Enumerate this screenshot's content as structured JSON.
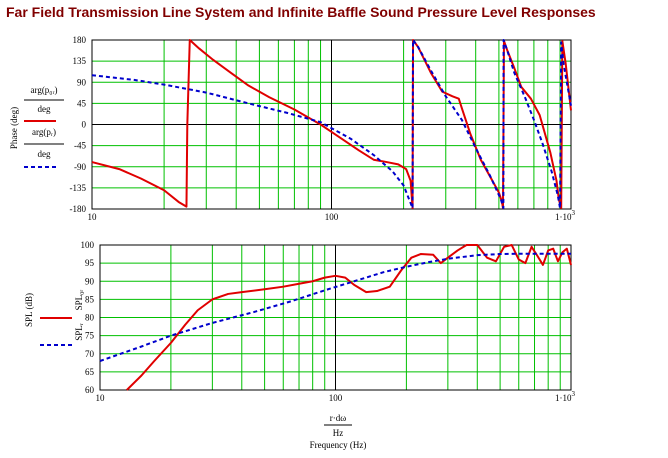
{
  "title": "Far Field Transmission Line System and Infinite Baffle Sound Pressure Level Responses",
  "colors": {
    "series1": "#e00000",
    "series2": "#0000cc",
    "grid_minor": "#00c000",
    "grid_major": "#000000",
    "title": "#800000"
  },
  "chart_data": [
    {
      "type": "line",
      "x_scale": "log",
      "xlim": [
        10,
        1000
      ],
      "ylim": [
        -180,
        180
      ],
      "grid": true,
      "x_ticks": [
        "10",
        "100",
        "1·10³"
      ],
      "y_ticks": [
        "180",
        "135",
        "90",
        "45",
        "0",
        "-45",
        "-90",
        "-135",
        "-180"
      ],
      "ylabel": "Phase (deg)",
      "xlabel": "",
      "legend_position": "left",
      "legend": [
        {
          "num": "arg(p₀ᵣ)",
          "den": "deg"
        },
        {
          "num": "arg(pᵣ)",
          "den": "deg"
        }
      ],
      "series": [
        {
          "x": [
            10,
            13,
            16,
            20,
            23,
            24.8,
            25,
            25.6,
            28,
            32,
            38,
            45,
            55,
            70,
            90,
            110,
            130,
            150,
            170,
            190,
            205,
            214,
            218,
            219,
            230,
            260,
            290,
            320,
            340,
            350,
            380,
            420,
            470,
            500,
            515,
            520,
            525,
            540,
            580,
            620,
            680,
            740,
            820,
            870,
            890,
            910,
            920,
            950,
            1000
          ],
          "y": [
            -80,
            -95,
            -115,
            -140,
            -165,
            -175,
            0,
            180,
            162,
            138,
            110,
            83,
            58,
            32,
            0,
            -30,
            -55,
            -75,
            -80,
            -85,
            -95,
            -120,
            -178,
            180,
            165,
            110,
            70,
            60,
            55,
            35,
            -20,
            -75,
            -120,
            -145,
            -165,
            -178,
            178,
            160,
            120,
            80,
            55,
            20,
            -60,
            -120,
            -160,
            -178,
            178,
            130,
            30
          ]
        },
        {
          "x": [
            10,
            15,
            20,
            30,
            45,
            65,
            90,
            120,
            150,
            180,
            200,
            218,
            219,
            230,
            260,
            300,
            350,
            400,
            460,
            510,
            522,
            523,
            540,
            580,
            640,
            700,
            760,
            830,
            880,
            900,
            910,
            930,
            1000
          ],
          "y": [
            105,
            95,
            85,
            68,
            45,
            25,
            5,
            -30,
            -65,
            -100,
            -130,
            -178,
            180,
            165,
            115,
            60,
            10,
            -50,
            -110,
            -160,
            -178,
            180,
            160,
            110,
            60,
            10,
            -40,
            -100,
            -150,
            -178,
            175,
            130,
            40
          ]
        }
      ]
    },
    {
      "type": "line",
      "x_scale": "log",
      "xlim": [
        10,
        1000
      ],
      "ylim": [
        60,
        100
      ],
      "grid": true,
      "x_ticks": [
        "10",
        "100",
        "1·10³"
      ],
      "y_ticks": [
        "100",
        "95",
        "90",
        "85",
        "80",
        "75",
        "70",
        "65",
        "60"
      ],
      "ylabel": "SPL (dB)",
      "xlabel_num": "r·dω",
      "xlabel_den": "Hz",
      "xlabel": "Frequency (Hz)",
      "legend_position": "left",
      "legend": [
        {
          "num": "SPL₀ᵣ"
        },
        {
          "num": "SPLᵣ"
        }
      ],
      "series": [
        {
          "x": [
            13,
            15,
            17,
            20,
            23,
            26,
            30,
            35,
            40,
            50,
            60,
            70,
            80,
            90,
            100,
            110,
            120,
            135,
            150,
            170,
            190,
            210,
            230,
            260,
            280,
            300,
            330,
            360,
            400,
            440,
            480,
            520,
            560,
            600,
            640,
            680,
            720,
            760,
            800,
            840,
            880,
            920,
            960,
            1000
          ],
          "y": [
            60,
            64,
            68,
            73,
            78,
            82,
            85,
            86.5,
            87,
            87.8,
            88.5,
            89.3,
            90,
            91,
            91.5,
            91,
            89,
            87,
            87.3,
            88.5,
            93,
            96.5,
            97.5,
            97.3,
            95,
            96.5,
            98.5,
            100,
            100,
            96.5,
            95.5,
            99.5,
            100,
            96,
            95,
            99.5,
            97,
            94.5,
            98.5,
            99,
            95.5,
            98,
            99,
            94.5
          ]
        },
        {
          "x": [
            10,
            15,
            20,
            30,
            45,
            65,
            90,
            120,
            160,
            200,
            250,
            300,
            400,
            500,
            600,
            700,
            800,
            900,
            1000
          ],
          "y": [
            68,
            72,
            75,
            78.5,
            81.5,
            84.5,
            87.5,
            90,
            92.5,
            94,
            95.3,
            96.2,
            97.2,
            97.5,
            97.6,
            97.6,
            97.6,
            97.6,
            97.6
          ]
        }
      ]
    }
  ]
}
